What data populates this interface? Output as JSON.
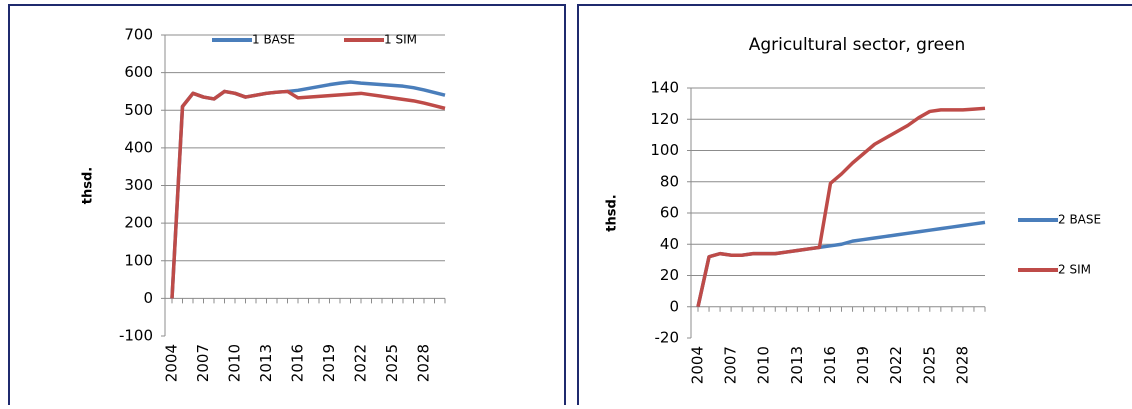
{
  "chart_data": [
    {
      "type": "line",
      "ylabel": "thsd.",
      "x": [
        2004,
        2005,
        2006,
        2007,
        2008,
        2009,
        2010,
        2011,
        2012,
        2013,
        2014,
        2015,
        2016,
        2017,
        2018,
        2019,
        2020,
        2021,
        2022,
        2023,
        2024,
        2025,
        2026,
        2027,
        2028,
        2029,
        2030
      ],
      "xlim": [
        2004,
        2030
      ],
      "xticks": [
        2004,
        2007,
        2010,
        2013,
        2016,
        2019,
        2022,
        2025,
        2028
      ],
      "ylim": [
        -100,
        700
      ],
      "yticks": [
        -100,
        0,
        100,
        200,
        300,
        400,
        500,
        600,
        700
      ],
      "grid": true,
      "negative_tick_color": "#ff0000",
      "legend": "top",
      "series": [
        {
          "name": "1 BASE",
          "color": "#4a7ebb",
          "values": [
            0,
            510,
            545,
            535,
            530,
            550,
            545,
            535,
            540,
            545,
            548,
            550,
            553,
            558,
            563,
            568,
            572,
            575,
            572,
            570,
            568,
            566,
            564,
            560,
            554,
            547,
            540
          ]
        },
        {
          "name": "1 SIM",
          "color": "#be4b48",
          "values": [
            0,
            510,
            545,
            535,
            530,
            550,
            545,
            535,
            540,
            545,
            548,
            550,
            533,
            535,
            537,
            539,
            541,
            543,
            545,
            541,
            537,
            533,
            529,
            525,
            519,
            512,
            505
          ]
        }
      ]
    },
    {
      "type": "line",
      "title": "Agricultural sector, green",
      "ylabel": "thsd.",
      "x": [
        2004,
        2005,
        2006,
        2007,
        2008,
        2009,
        2010,
        2011,
        2012,
        2013,
        2014,
        2015,
        2016,
        2017,
        2018,
        2019,
        2020,
        2021,
        2022,
        2023,
        2024,
        2025,
        2026,
        2027,
        2028,
        2029,
        2030
      ],
      "xlim": [
        2004,
        2030
      ],
      "xticks": [
        2004,
        2007,
        2010,
        2013,
        2016,
        2019,
        2022,
        2025,
        2028
      ],
      "ylim": [
        -20,
        140
      ],
      "yticks": [
        -20,
        0,
        20,
        40,
        60,
        80,
        100,
        120,
        140
      ],
      "grid": true,
      "negative_tick_color": "#ff0000",
      "legend": "right",
      "series": [
        {
          "name": "2 BASE",
          "color": "#4a7ebb",
          "values": [
            0,
            32,
            34,
            33,
            33,
            34,
            34,
            34,
            35,
            36,
            37,
            38,
            39,
            40,
            42,
            43,
            44,
            45,
            46,
            47,
            48,
            49,
            50,
            51,
            52,
            53,
            54
          ]
        },
        {
          "name": "2 SIM",
          "color": "#be4b48",
          "values": [
            0,
            32,
            34,
            33,
            33,
            34,
            34,
            34,
            35,
            36,
            37,
            38,
            79,
            85,
            92,
            98,
            104,
            108,
            112,
            116,
            121,
            125,
            126,
            126,
            126,
            126.5,
            127
          ]
        }
      ]
    }
  ]
}
